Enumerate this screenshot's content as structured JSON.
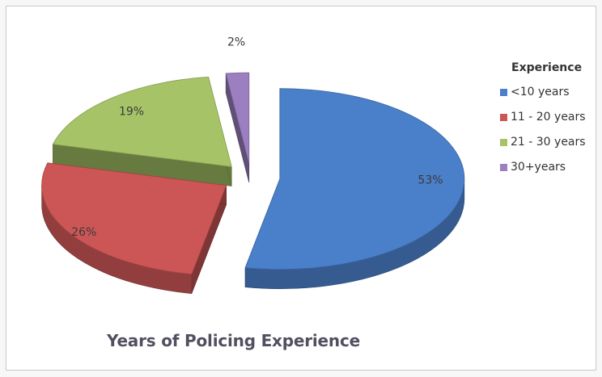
{
  "chart_data": {
    "type": "pie",
    "title": "Years of Policing Experience",
    "legend_title": "Experience",
    "legend_position": "right",
    "categories": [
      "<10 years",
      "11 - 20 years",
      "21 - 30 years",
      "30+years"
    ],
    "values": [
      53,
      26,
      19,
      2
    ],
    "labels": [
      "53%",
      "26%",
      "19%",
      "2%"
    ],
    "colors": [
      "#4a7fc9",
      "#cc5656",
      "#a6c467",
      "#9b7fc0"
    ],
    "style": "3d-exploded"
  }
}
